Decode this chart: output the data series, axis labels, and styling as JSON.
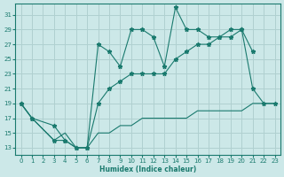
{
  "background_color": "#cce8e8",
  "grid_color": "#b0d0d0",
  "line_color": "#1a7a6e",
  "xlabel": "Humidex (Indice chaleur)",
  "xlim": [
    -0.5,
    23.5
  ],
  "ylim": [
    12,
    32.5
  ],
  "yticks": [
    13,
    15,
    17,
    19,
    21,
    23,
    25,
    27,
    29,
    31
  ],
  "xticks": [
    0,
    1,
    2,
    3,
    4,
    5,
    6,
    7,
    8,
    9,
    10,
    11,
    12,
    13,
    14,
    15,
    16,
    17,
    18,
    19,
    20,
    21,
    22,
    23
  ],
  "line_upper_x": [
    0,
    1,
    3,
    4,
    5,
    6,
    7,
    8,
    9,
    10,
    11,
    12,
    13,
    14,
    15,
    16,
    17,
    18,
    19,
    20,
    21
  ],
  "line_upper_y": [
    19,
    17,
    16,
    14,
    13,
    13,
    27,
    26,
    24,
    29,
    29,
    28,
    24,
    32,
    29,
    29,
    28,
    28,
    29,
    29,
    26
  ],
  "line_mid_x": [
    0,
    1,
    3,
    4,
    5,
    6,
    7,
    8,
    9,
    10,
    11,
    12,
    13,
    14,
    15,
    16,
    17,
    18,
    19,
    20,
    21,
    22,
    23
  ],
  "line_mid_y": [
    19,
    17,
    14,
    14,
    13,
    13,
    19,
    21,
    22,
    23,
    23,
    23,
    23,
    25,
    26,
    27,
    27,
    28,
    28,
    29,
    21,
    19,
    19
  ],
  "line_low_x": [
    0,
    1,
    3,
    4,
    5,
    6,
    7,
    8,
    9,
    10,
    11,
    12,
    13,
    14,
    15,
    16,
    17,
    18,
    19,
    20,
    21,
    22,
    23
  ],
  "line_low_y": [
    19,
    17,
    14,
    15,
    13,
    13,
    15,
    15,
    16,
    16,
    17,
    17,
    17,
    17,
    17,
    18,
    18,
    18,
    18,
    18,
    19,
    19,
    19
  ]
}
